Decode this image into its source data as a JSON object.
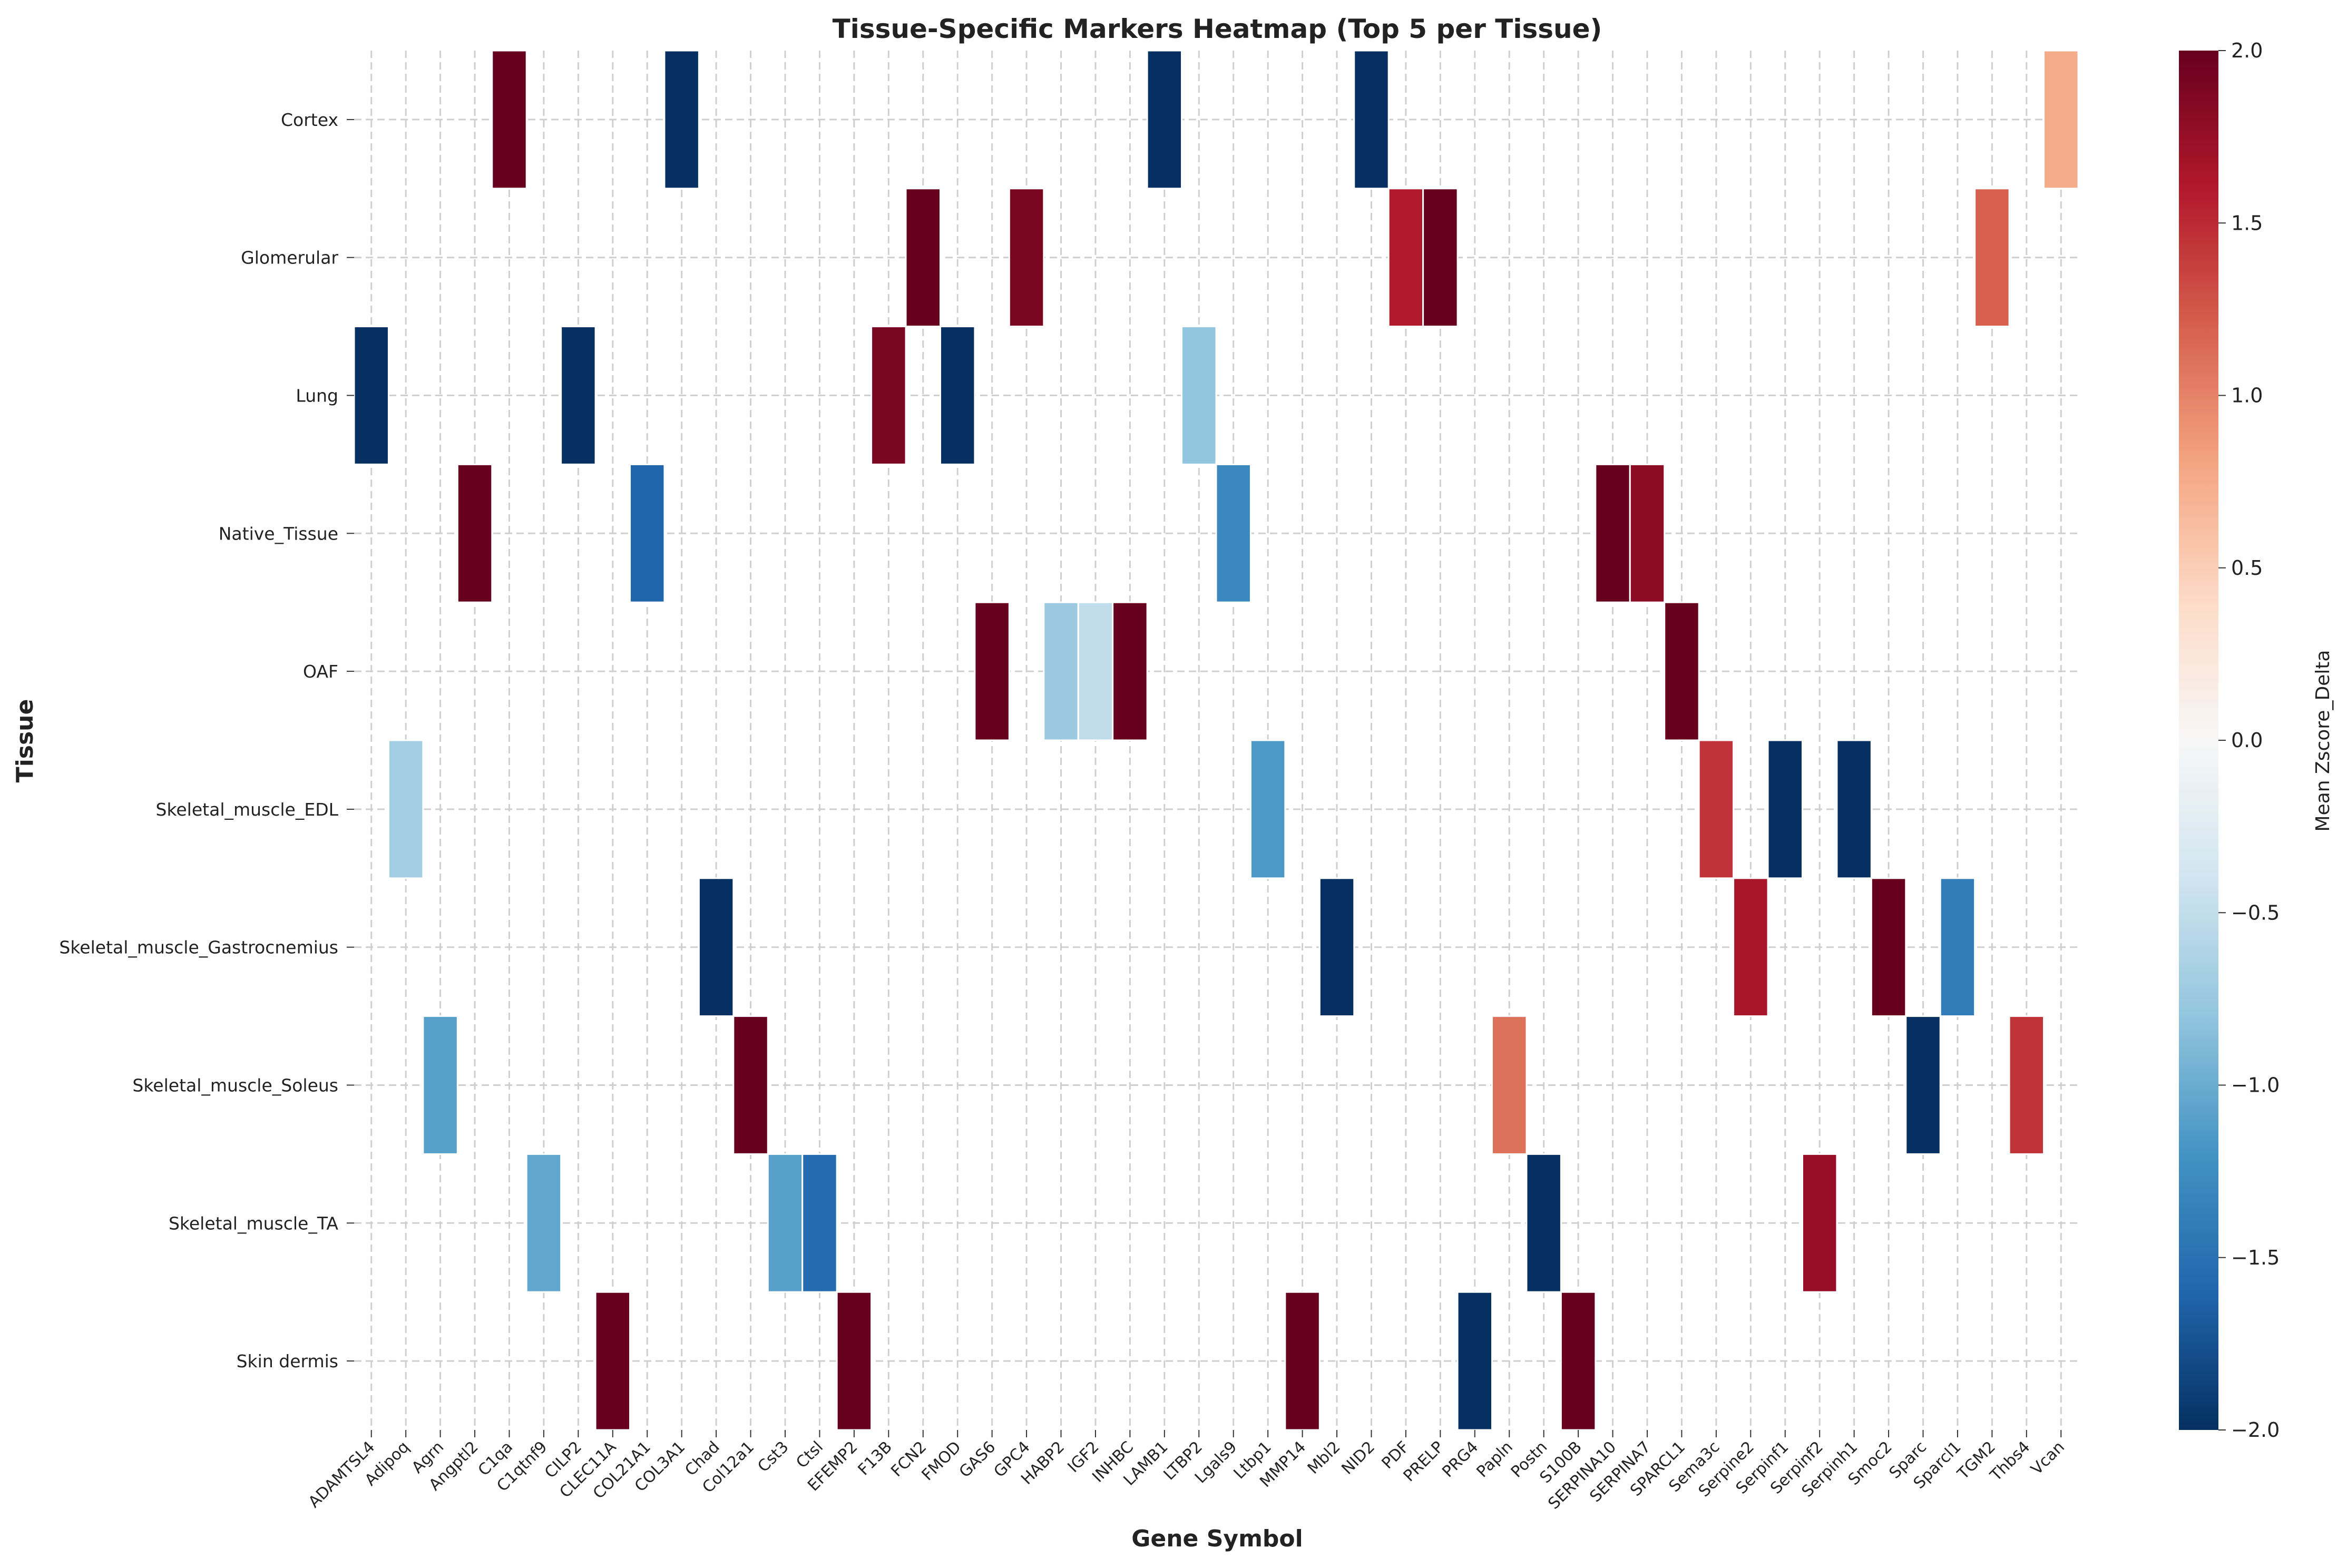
{
  "chart_data": {
    "type": "heatmap",
    "title": "Tissue-Specific Markers Heatmap (Top 5 per Tissue)",
    "xlabel": "Gene Symbol",
    "ylabel": "Tissue",
    "colorbar_label": "Mean Zscore_Delta",
    "colormap": "RdBu_r",
    "vmin": -2.0,
    "vmax": 2.0,
    "colorbar_ticks": [
      "-2.0",
      "-1.5",
      "-1.0",
      "-0.5",
      "0.0",
      "0.5",
      "1.0",
      "1.5",
      "2.0"
    ],
    "grid": true,
    "x_categories": [
      "ADAMTSL4",
      "Adipoq",
      "Agrn",
      "Angptl2",
      "C1qa",
      "C1qtnf9",
      "CILP2",
      "CLEC11A",
      "COL21A1",
      "COL3A1",
      "Chad",
      "Col12a1",
      "Cst3",
      "Ctsl",
      "EFEMP2",
      "F13B",
      "FCN2",
      "FMOD",
      "GAS6",
      "GPC4",
      "HABP2",
      "IGF2",
      "INHBC",
      "LAMB1",
      "LTBP2",
      "Lgals9",
      "Ltbp1",
      "MMP14",
      "Mbl2",
      "NID2",
      "PDF",
      "PRELP",
      "PRG4",
      "Papln",
      "Postn",
      "S100B",
      "SERPINA10",
      "SERPINA7",
      "SPARCL1",
      "Sema3c",
      "Serpine2",
      "Serpinf1",
      "Serpinf2",
      "Serpinh1",
      "Smoc2",
      "Sparc",
      "Sparcl1",
      "TGM2",
      "Thbs4",
      "Vcan"
    ],
    "y_categories": [
      "Cortex",
      "Glomerular",
      "Lung",
      "Native_Tissue",
      "OAF",
      "Skeletal_muscle_EDL",
      "Skeletal_muscle_Gastrocnemius",
      "Skeletal_muscle_Soleus",
      "Skeletal_muscle_TA",
      "Skin dermis"
    ],
    "cells": [
      {
        "tissue": "Cortex",
        "gene": "C1qa",
        "value": 2.0
      },
      {
        "tissue": "Cortex",
        "gene": "COL3A1",
        "value": -2.0
      },
      {
        "tissue": "Cortex",
        "gene": "LAMB1",
        "value": -2.0
      },
      {
        "tissue": "Cortex",
        "gene": "NID2",
        "value": -2.0
      },
      {
        "tissue": "Cortex",
        "gene": "Vcan",
        "value": 0.75
      },
      {
        "tissue": "Glomerular",
        "gene": "FCN2",
        "value": 2.0
      },
      {
        "tissue": "Glomerular",
        "gene": "GPC4",
        "value": 1.9
      },
      {
        "tissue": "Glomerular",
        "gene": "PDF",
        "value": 1.6
      },
      {
        "tissue": "Glomerular",
        "gene": "PRELP",
        "value": 2.0
      },
      {
        "tissue": "Glomerular",
        "gene": "TGM2",
        "value": 1.2
      },
      {
        "tissue": "Lung",
        "gene": "ADAMTSL4",
        "value": -2.0
      },
      {
        "tissue": "Lung",
        "gene": "CILP2",
        "value": -2.0
      },
      {
        "tissue": "Lung",
        "gene": "F13B",
        "value": 1.9
      },
      {
        "tissue": "Lung",
        "gene": "FMOD",
        "value": -2.0
      },
      {
        "tissue": "Lung",
        "gene": "LTBP2",
        "value": -0.8
      },
      {
        "tissue": "Native_Tissue",
        "gene": "Angptl2",
        "value": 2.0
      },
      {
        "tissue": "Native_Tissue",
        "gene": "COL21A1",
        "value": -1.6
      },
      {
        "tissue": "Native_Tissue",
        "gene": "Lgals9",
        "value": -1.3
      },
      {
        "tissue": "Native_Tissue",
        "gene": "SERPINA10",
        "value": 2.0
      },
      {
        "tissue": "Native_Tissue",
        "gene": "SERPINA7",
        "value": 1.8
      },
      {
        "tissue": "OAF",
        "gene": "GAS6",
        "value": 2.0
      },
      {
        "tissue": "OAF",
        "gene": "HABP2",
        "value": -0.75
      },
      {
        "tissue": "OAF",
        "gene": "IGF2",
        "value": -0.5
      },
      {
        "tissue": "OAF",
        "gene": "INHBC",
        "value": 2.0
      },
      {
        "tissue": "OAF",
        "gene": "SPARCL1",
        "value": 2.0
      },
      {
        "tissue": "Skeletal_muscle_EDL",
        "gene": "Adipoq",
        "value": -0.7
      },
      {
        "tissue": "Skeletal_muscle_EDL",
        "gene": "Ltbp1",
        "value": -1.15
      },
      {
        "tissue": "Skeletal_muscle_EDL",
        "gene": "Sema3c",
        "value": 1.45
      },
      {
        "tissue": "Skeletal_muscle_EDL",
        "gene": "Serpinf1",
        "value": -2.0
      },
      {
        "tissue": "Skeletal_muscle_EDL",
        "gene": "Serpinh1",
        "value": -2.0
      },
      {
        "tissue": "Skeletal_muscle_Gastrocnemius",
        "gene": "Chad",
        "value": -2.0
      },
      {
        "tissue": "Skeletal_muscle_Gastrocnemius",
        "gene": "Mbl2",
        "value": -2.0
      },
      {
        "tissue": "Skeletal_muscle_Gastrocnemius",
        "gene": "Serpine2",
        "value": 1.65
      },
      {
        "tissue": "Skeletal_muscle_Gastrocnemius",
        "gene": "Smoc2",
        "value": 2.0
      },
      {
        "tissue": "Skeletal_muscle_Gastrocnemius",
        "gene": "Sparcl1",
        "value": -1.4
      },
      {
        "tissue": "Skeletal_muscle_Soleus",
        "gene": "Agrn",
        "value": -1.1
      },
      {
        "tissue": "Skeletal_muscle_Soleus",
        "gene": "Col12a1",
        "value": 2.0
      },
      {
        "tissue": "Skeletal_muscle_Soleus",
        "gene": "Papln",
        "value": 1.1
      },
      {
        "tissue": "Skeletal_muscle_Soleus",
        "gene": "Sparc",
        "value": -2.0
      },
      {
        "tissue": "Skeletal_muscle_Soleus",
        "gene": "Thbs4",
        "value": 1.45
      },
      {
        "tissue": "Skeletal_muscle_TA",
        "gene": "C1qtnf9",
        "value": -1.05
      },
      {
        "tissue": "Skeletal_muscle_TA",
        "gene": "Cst3",
        "value": -1.1
      },
      {
        "tissue": "Skeletal_muscle_TA",
        "gene": "Ctsl",
        "value": -1.55
      },
      {
        "tissue": "Skeletal_muscle_TA",
        "gene": "Postn",
        "value": -2.0
      },
      {
        "tissue": "Skeletal_muscle_TA",
        "gene": "Serpinf2",
        "value": 1.75
      },
      {
        "tissue": "Skin dermis",
        "gene": "CLEC11A",
        "value": 2.0
      },
      {
        "tissue": "Skin dermis",
        "gene": "EFEMP2",
        "value": 2.0
      },
      {
        "tissue": "Skin dermis",
        "gene": "MMP14",
        "value": 2.0
      },
      {
        "tissue": "Skin dermis",
        "gene": "PRG4",
        "value": -2.0
      },
      {
        "tissue": "Skin dermis",
        "gene": "S100B",
        "value": 2.0
      }
    ]
  }
}
